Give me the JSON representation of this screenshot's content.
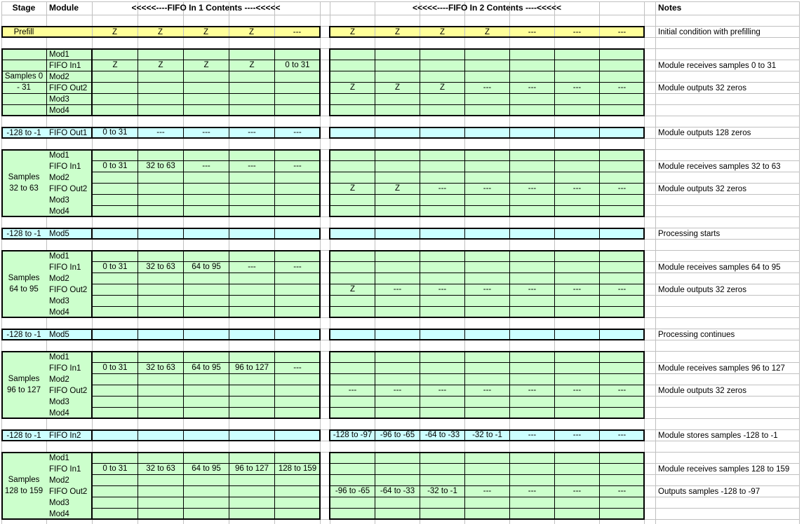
{
  "title_row": {
    "stage": "Stage",
    "module": "Module",
    "fifo1": "<<<<<----FIFO In 1 Contents ----<<<<<",
    "fifo2": "<<<<<----FIFO In 2 Contents ----<<<<<",
    "notes": "Notes"
  },
  "colors": {
    "prefill_yellow": "#ffff99",
    "block_green": "#ccffcc",
    "bar_blue": "#ccffff",
    "border_black": "#000000",
    "gridline_gray": "#c0c0c0"
  },
  "sections": [
    {
      "kind": "band",
      "stage": "Prefill",
      "left": [
        "Z",
        "Z",
        "Z",
        "Z",
        "---"
      ],
      "right": [
        "Z",
        "Z",
        "Z",
        "Z",
        "---",
        "---",
        "---"
      ],
      "note": "Initial condition with prefilling"
    },
    {
      "kind": "block",
      "label_style": "bordered",
      "stage_lines": [
        "Samples 0",
        "- 31"
      ],
      "modules": [
        "Mod1",
        "FIFO In1",
        "Mod2",
        "FIFO Out2",
        "Mod3",
        "Mod4"
      ],
      "left": [
        [
          "",
          "",
          "",
          "",
          ""
        ],
        [
          "Z",
          "Z",
          "Z",
          "Z",
          "0 to 31"
        ],
        [
          "",
          "",
          "",
          "",
          ""
        ],
        [
          "",
          "",
          "",
          "",
          ""
        ],
        [
          "",
          "",
          "",
          "",
          ""
        ],
        [
          "",
          "",
          "",
          "",
          ""
        ]
      ],
      "right": [
        [
          "",
          "",
          "",
          "",
          "",
          "",
          ""
        ],
        [
          "",
          "",
          "",
          "",
          "",
          "",
          ""
        ],
        [
          "",
          "",
          "",
          "",
          "",
          "",
          ""
        ],
        [
          "Z",
          "Z",
          "Z",
          "---",
          "---",
          "---",
          "---"
        ],
        [
          "",
          "",
          "",
          "",
          "",
          "",
          ""
        ],
        [
          "",
          "",
          "",
          "",
          "",
          "",
          ""
        ]
      ],
      "notes": [
        "",
        "Module receives samples 0 to 31",
        "",
        "Module outputs 32 zeros",
        "",
        ""
      ]
    },
    {
      "kind": "bar",
      "stage": "-128 to -1",
      "module": "FIFO Out1",
      "left": [
        "0 to 31",
        "---",
        "---",
        "---",
        "---"
      ],
      "right": [
        "",
        "",
        "",
        "",
        "",
        "",
        ""
      ],
      "note": "Module outputs 128 zeros"
    },
    {
      "kind": "block",
      "label_style": "merged",
      "stage_lines": [
        "Samples",
        "32 to 63"
      ],
      "modules": [
        "Mod1",
        "FIFO In1",
        "Mod2",
        "FIFO Out2",
        "Mod3",
        "Mod4"
      ],
      "left": [
        [
          "",
          "",
          "",
          "",
          ""
        ],
        [
          "0 to 31",
          "32 to 63",
          "---",
          "---",
          "---"
        ],
        [
          "",
          "",
          "",
          "",
          ""
        ],
        [
          "",
          "",
          "",
          "",
          ""
        ],
        [
          "",
          "",
          "",
          "",
          ""
        ],
        [
          "",
          "",
          "",
          "",
          ""
        ]
      ],
      "right": [
        [
          "",
          "",
          "",
          "",
          "",
          "",
          ""
        ],
        [
          "",
          "",
          "",
          "",
          "",
          "",
          ""
        ],
        [
          "",
          "",
          "",
          "",
          "",
          "",
          ""
        ],
        [
          "Z",
          "Z",
          "---",
          "---",
          "---",
          "---",
          "---"
        ],
        [
          "",
          "",
          "",
          "",
          "",
          "",
          ""
        ],
        [
          "",
          "",
          "",
          "",
          "",
          "",
          ""
        ]
      ],
      "notes": [
        "",
        "Module receives samples 32 to 63",
        "",
        "Module outputs 32 zeros",
        "",
        ""
      ]
    },
    {
      "kind": "bar",
      "stage": "-128 to -1",
      "module": "Mod5",
      "left": [
        "",
        "",
        "",
        "",
        ""
      ],
      "right": [
        "",
        "",
        "",
        "",
        "",
        "",
        ""
      ],
      "note": "Processing starts"
    },
    {
      "kind": "block",
      "label_style": "merged",
      "stage_lines": [
        "Samples",
        "64 to 95"
      ],
      "modules": [
        "Mod1",
        "FIFO In1",
        "Mod2",
        "FIFO Out2",
        "Mod3",
        "Mod4"
      ],
      "left": [
        [
          "",
          "",
          "",
          "",
          ""
        ],
        [
          "0 to 31",
          "32 to 63",
          "64 to 95",
          "---",
          "---"
        ],
        [
          "",
          "",
          "",
          "",
          ""
        ],
        [
          "",
          "",
          "",
          "",
          ""
        ],
        [
          "",
          "",
          "",
          "",
          ""
        ],
        [
          "",
          "",
          "",
          "",
          ""
        ]
      ],
      "right": [
        [
          "",
          "",
          "",
          "",
          "",
          "",
          ""
        ],
        [
          "",
          "",
          "",
          "",
          "",
          "",
          ""
        ],
        [
          "",
          "",
          "",
          "",
          "",
          "",
          ""
        ],
        [
          "Z",
          "---",
          "---",
          "---",
          "---",
          "---",
          "---"
        ],
        [
          "",
          "",
          "",
          "",
          "",
          "",
          ""
        ],
        [
          "",
          "",
          "",
          "",
          "",
          "",
          ""
        ]
      ],
      "notes": [
        "",
        "Module receives samples 64 to 95",
        "",
        "Module outputs 32 zeros",
        "",
        ""
      ]
    },
    {
      "kind": "bar",
      "stage": "-128 to -1",
      "module": "Mod5",
      "left": [
        "",
        "",
        "",
        "",
        ""
      ],
      "right": [
        "",
        "",
        "",
        "",
        "",
        "",
        ""
      ],
      "note": "Processing continues"
    },
    {
      "kind": "block",
      "label_style": "merged",
      "stage_lines": [
        "Samples",
        "96 to 127"
      ],
      "modules": [
        "Mod1",
        "FIFO In1",
        "Mod2",
        "FIFO Out2",
        "Mod3",
        "Mod4"
      ],
      "left": [
        [
          "",
          "",
          "",
          "",
          ""
        ],
        [
          "0 to 31",
          "32 to 63",
          "64 to 95",
          "96 to 127",
          "---"
        ],
        [
          "",
          "",
          "",
          "",
          ""
        ],
        [
          "",
          "",
          "",
          "",
          ""
        ],
        [
          "",
          "",
          "",
          "",
          ""
        ],
        [
          "",
          "",
          "",
          "",
          ""
        ]
      ],
      "right": [
        [
          "",
          "",
          "",
          "",
          "",
          "",
          ""
        ],
        [
          "",
          "",
          "",
          "",
          "",
          "",
          ""
        ],
        [
          "",
          "",
          "",
          "",
          "",
          "",
          ""
        ],
        [
          "---",
          "---",
          "---",
          "---",
          "---",
          "---",
          "---"
        ],
        [
          "",
          "",
          "",
          "",
          "",
          "",
          ""
        ],
        [
          "",
          "",
          "",
          "",
          "",
          "",
          ""
        ]
      ],
      "notes": [
        "",
        "Module receives samples 96 to 127",
        "",
        "Module outputs 32 zeros",
        "",
        ""
      ]
    },
    {
      "kind": "bar",
      "stage": "-128 to -1",
      "module": "FIFO In2",
      "left": [
        "",
        "",
        "",
        "",
        ""
      ],
      "right": [
        "-128 to -97",
        "-96 to -65",
        "-64 to -33",
        "-32 to -1",
        "---",
        "---",
        "---"
      ],
      "note": "Module stores samples -128 to -1"
    },
    {
      "kind": "block",
      "label_style": "merged",
      "stage_lines": [
        "Samples",
        "128 to 159"
      ],
      "modules": [
        "Mod1",
        "FIFO In1",
        "Mod2",
        "FIFO Out2",
        "Mod3",
        "Mod4"
      ],
      "left": [
        [
          "",
          "",
          "",
          "",
          ""
        ],
        [
          "0 to 31",
          "32 to 63",
          "64 to 95",
          "96 to 127",
          "128 to 159"
        ],
        [
          "",
          "",
          "",
          "",
          ""
        ],
        [
          "",
          "",
          "",
          "",
          ""
        ],
        [
          "",
          "",
          "",
          "",
          ""
        ],
        [
          "",
          "",
          "",
          "",
          ""
        ]
      ],
      "right": [
        [
          "",
          "",
          "",
          "",
          "",
          "",
          ""
        ],
        [
          "",
          "",
          "",
          "",
          "",
          "",
          ""
        ],
        [
          "",
          "",
          "",
          "",
          "",
          "",
          ""
        ],
        [
          "-96 to -65",
          "-64 to -33",
          "-32 to -1",
          "---",
          "---",
          "---",
          "---"
        ],
        [
          "",
          "",
          "",
          "",
          "",
          "",
          ""
        ],
        [
          "",
          "",
          "",
          "",
          "",
          "",
          ""
        ]
      ],
      "notes": [
        "",
        "Module receives samples 128 to 159",
        "",
        "Outputs samples -128 to -97",
        "",
        ""
      ]
    }
  ]
}
